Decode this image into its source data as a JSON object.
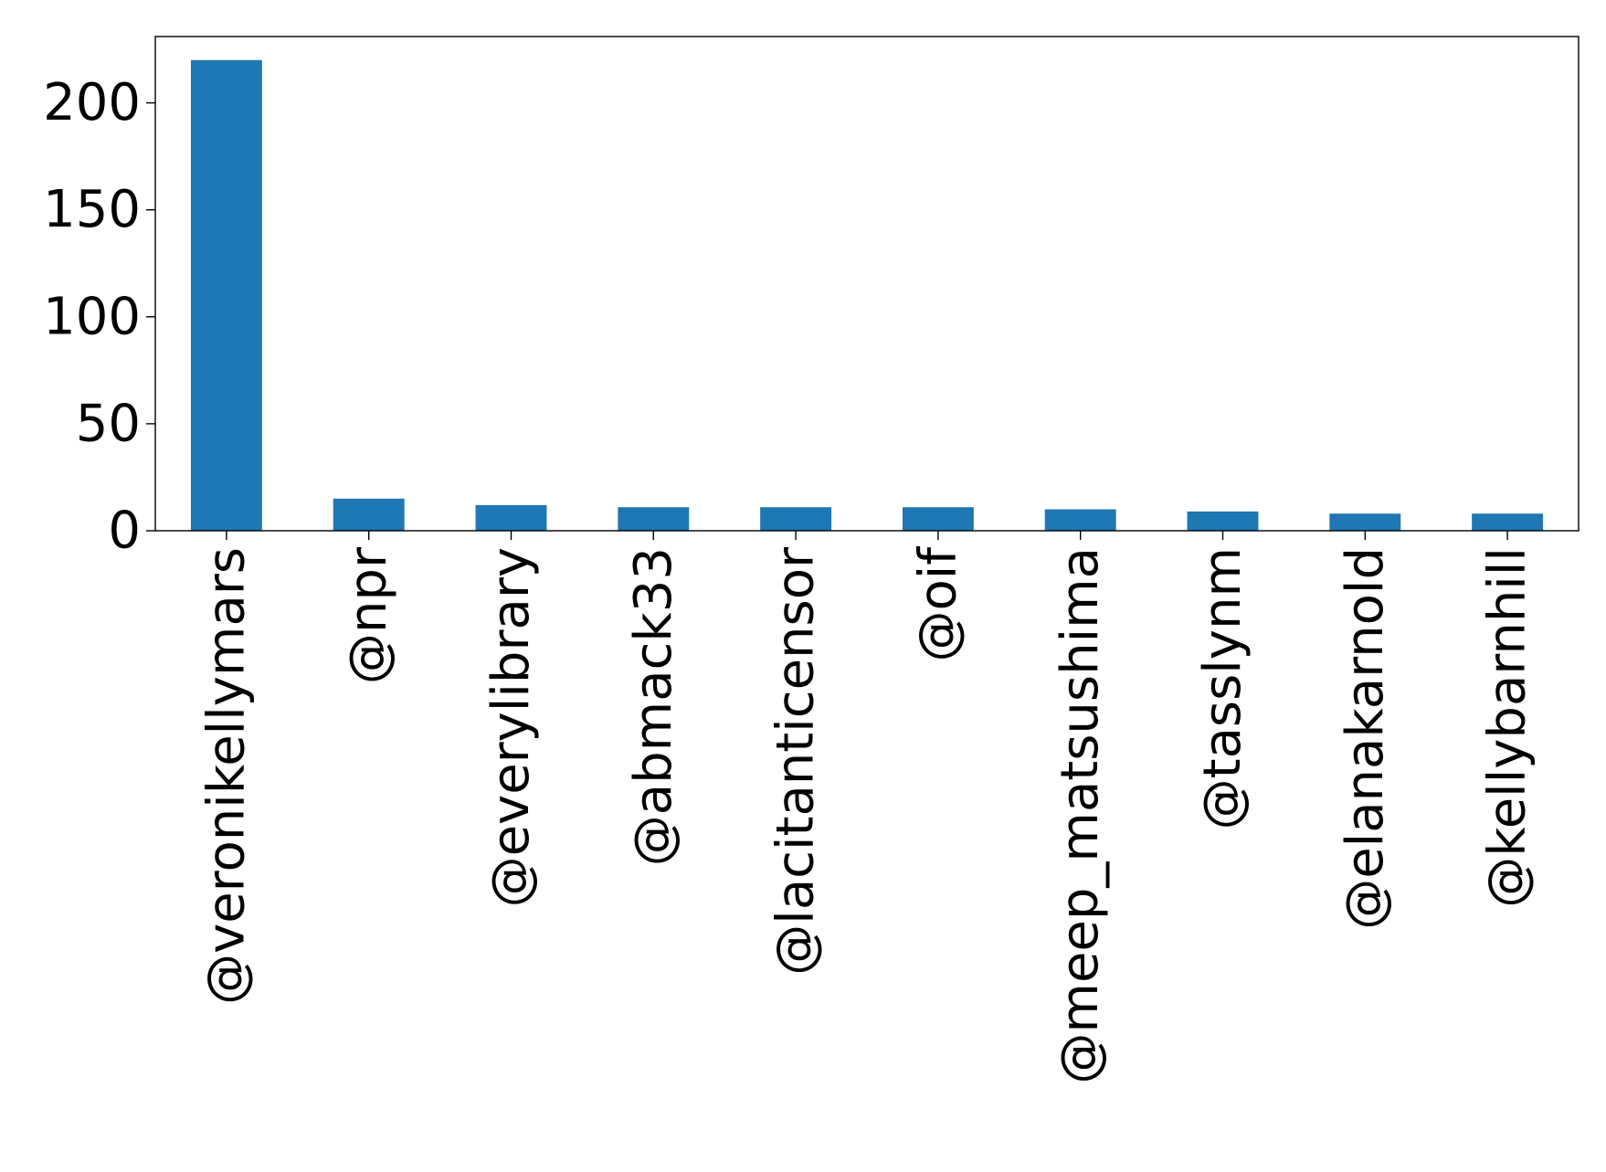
{
  "chart_data": {
    "type": "bar",
    "categories": [
      "@veronikellymars",
      "@npr",
      "@everylibrary",
      "@abmack33",
      "@lacitanticensor",
      "@oif",
      "@meep_matsushima",
      "@tasslynm",
      "@elanakarnold",
      "@kellybarnhill"
    ],
    "values": [
      220,
      15,
      12,
      11,
      11,
      11,
      10,
      9,
      8,
      8
    ],
    "ylim": [
      0,
      231
    ],
    "yticks": [
      0,
      50,
      100,
      150,
      200
    ],
    "title": "",
    "xlabel": "",
    "ylabel": "",
    "grid": false,
    "legend": "none",
    "bar_color": "#1f77b4"
  }
}
